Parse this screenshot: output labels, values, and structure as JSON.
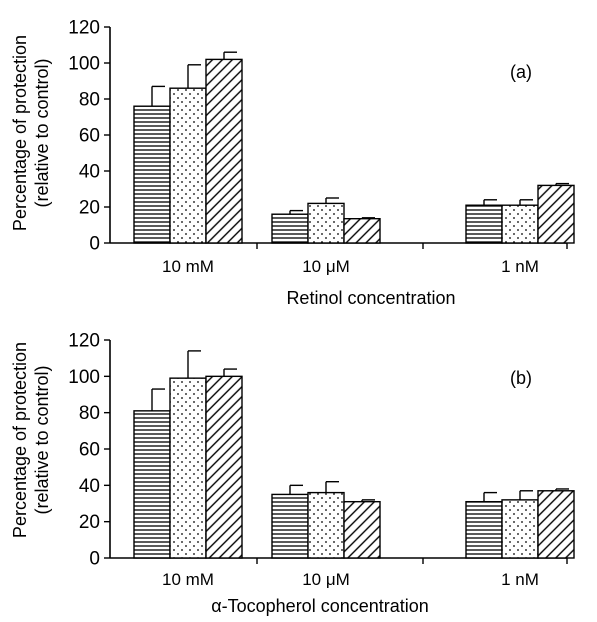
{
  "chart_data": [
    {
      "panel": "(a)",
      "type": "bar",
      "xlabel": "Retinol concentration",
      "ylabel": "Percentage of protection",
      "ylabel2": "(relative to control)",
      "ylim": [
        0,
        120
      ],
      "yticks": [
        0,
        20,
        40,
        60,
        80,
        100,
        120
      ],
      "categories": [
        "10 mM",
        "10 μM",
        "1 nM"
      ],
      "series": [
        {
          "pattern": "horizontal-lines",
          "values": [
            76,
            16,
            21
          ],
          "errors": [
            11,
            2,
            3
          ]
        },
        {
          "pattern": "dots",
          "values": [
            86,
            22,
            21
          ],
          "errors": [
            13,
            3,
            3
          ]
        },
        {
          "pattern": "diagonal-lines",
          "values": [
            102,
            13.5,
            32
          ],
          "errors": [
            4,
            0.5,
            1
          ]
        }
      ],
      "grid": false,
      "legend": "none"
    },
    {
      "panel": "(b)",
      "type": "bar",
      "xlabel": "α-Tocopherol concentration",
      "ylabel": "Percentage of protection",
      "ylabel2": "(relative to control)",
      "ylim": [
        0,
        120
      ],
      "yticks": [
        0,
        20,
        40,
        60,
        80,
        100,
        120
      ],
      "categories": [
        "10 mM",
        "10 μM",
        "1 nM"
      ],
      "series": [
        {
          "pattern": "horizontal-lines",
          "values": [
            81,
            35,
            31
          ],
          "errors": [
            12,
            5,
            5
          ]
        },
        {
          "pattern": "dots",
          "values": [
            99,
            36,
            32
          ],
          "errors": [
            15,
            6,
            5
          ]
        },
        {
          "pattern": "diagonal-lines",
          "values": [
            100,
            31,
            37
          ],
          "errors": [
            4,
            1,
            1
          ]
        }
      ],
      "grid": false,
      "legend": "none"
    }
  ],
  "colors": {
    "ink": "#000000",
    "background": "#ffffff"
  }
}
